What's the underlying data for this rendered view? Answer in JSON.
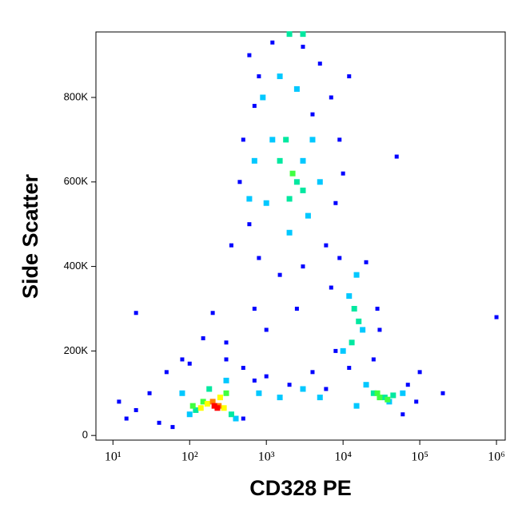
{
  "chart_data": {
    "type": "scatter",
    "x_label": "CD328 PE",
    "y_label": "Side Scatter",
    "xscale": "log",
    "xlim": [
      6,
      1300000
    ],
    "xticks": [
      {
        "value": 10,
        "label": "10¹"
      },
      {
        "value": 100,
        "label": "10²"
      },
      {
        "value": 1000,
        "label": "10³"
      },
      {
        "value": 10000,
        "label": "10⁴"
      },
      {
        "value": 100000,
        "label": "10⁵"
      },
      {
        "value": 1000000,
        "label": "10⁶"
      }
    ],
    "ylim": [
      -11000,
      955000
    ],
    "yticks": [
      0,
      {
        "value": 200000,
        "label": "200K"
      },
      {
        "value": 400000,
        "label": "400K"
      },
      {
        "value": 600000,
        "label": "600K"
      },
      {
        "value": 800000,
        "label": "800K"
      }
    ],
    "series": [
      {
        "color": "#0000ff",
        "x": [
          600,
          800,
          1200,
          3000,
          5000,
          7000,
          9000,
          500,
          450,
          600,
          800,
          1500,
          3000,
          6000,
          8000,
          10000,
          700,
          4000,
          12000,
          2500,
          1000,
          700,
          350,
          7000,
          9000,
          20000,
          28000,
          25000,
          8000,
          12000,
          30000,
          30,
          50,
          80,
          20,
          40,
          60,
          100,
          300,
          500,
          700,
          1000,
          2000,
          4000,
          6000,
          15,
          12,
          70000,
          90000,
          60000,
          100000,
          300,
          150,
          200,
          500,
          50000,
          1000000,
          200000,
          20
        ],
        "values": [
          900000,
          850000,
          930000,
          920000,
          880000,
          800000,
          700000,
          700000,
          600000,
          500000,
          420000,
          380000,
          400000,
          450000,
          550000,
          620000,
          780000,
          760000,
          850000,
          300000,
          250000,
          300000,
          450000,
          350000,
          420000,
          410000,
          300000,
          180000,
          200000,
          160000,
          250000,
          100000,
          150000,
          180000,
          60000,
          30000,
          20000,
          170000,
          180000,
          160000,
          130000,
          140000,
          120000,
          150000,
          110000,
          40000,
          80000,
          120000,
          80000,
          50000,
          150000,
          220000,
          230000,
          290000,
          40000,
          660000,
          280000,
          100000,
          290000
        ]
      },
      {
        "color": "#00c8ff",
        "x": [
          900,
          1500,
          2500,
          4000,
          700,
          1000,
          2000,
          3500,
          5000,
          1200,
          3000,
          600,
          12000,
          18000,
          10000,
          15000,
          20000,
          40000,
          60000,
          15000,
          800,
          1500,
          3000,
          100,
          400,
          80,
          300,
          5000
        ],
        "values": [
          800000,
          850000,
          820000,
          700000,
          650000,
          550000,
          480000,
          520000,
          600000,
          700000,
          650000,
          560000,
          330000,
          250000,
          200000,
          380000,
          120000,
          80000,
          100000,
          70000,
          100000,
          90000,
          110000,
          50000,
          40000,
          100000,
          130000,
          90000
        ]
      },
      {
        "color": "#00e8a0",
        "x": [
          1500,
          2500,
          2000,
          3000,
          1800,
          14000,
          16000,
          13000,
          25000,
          35000,
          45000,
          120,
          350,
          180,
          2000,
          3000
        ],
        "values": [
          650000,
          600000,
          560000,
          580000,
          700000,
          300000,
          270000,
          220000,
          100000,
          90000,
          95000,
          60000,
          50000,
          110000,
          950000,
          950000
        ]
      },
      {
        "color": "#40ff40",
        "x": [
          2200,
          30000,
          38000,
          28000,
          150,
          300,
          110
        ],
        "values": [
          620000,
          90000,
          85000,
          100000,
          80000,
          100000,
          70000
        ]
      },
      {
        "color": "#ffff00",
        "x": [
          170,
          250,
          140,
          280
        ],
        "values": [
          75000,
          90000,
          65000,
          65000
        ]
      },
      {
        "color": "#ff8000",
        "x": [
          200,
          240
        ],
        "values": [
          80000,
          70000
        ]
      },
      {
        "color": "#ff0000",
        "x": [
          210,
          230
        ],
        "values": [
          70000,
          65000
        ]
      }
    ]
  }
}
